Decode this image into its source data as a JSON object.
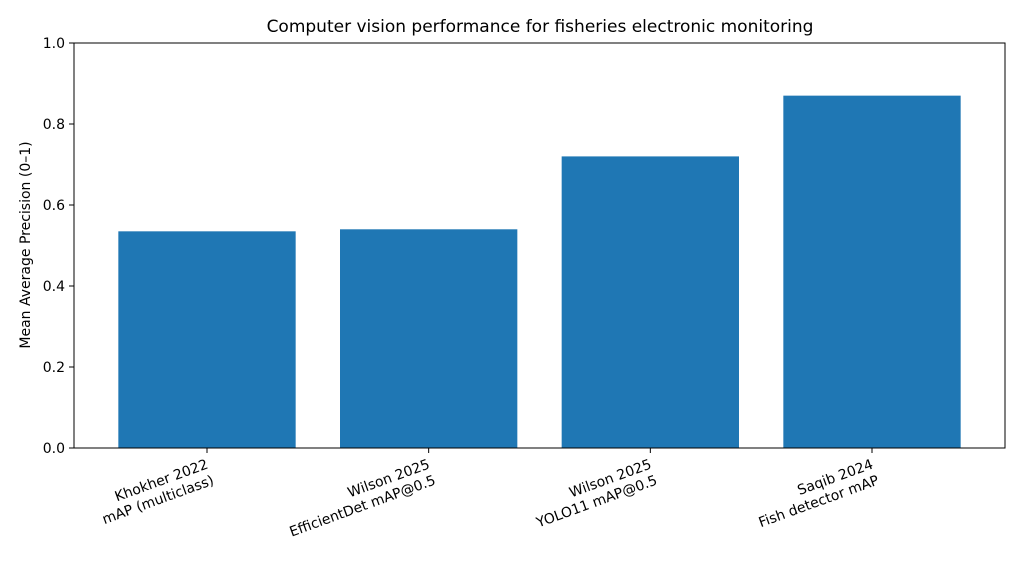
{
  "chart_data": {
    "type": "bar",
    "title": "Computer vision performance for fisheries electronic monitoring",
    "xlabel": "",
    "ylabel": "Mean Average Precision (0–1)",
    "ylim": [
      0,
      1.0
    ],
    "yticks": [
      "0.0",
      "0.2",
      "0.4",
      "0.6",
      "0.8",
      "1.0"
    ],
    "ytick_values": [
      0,
      0.2,
      0.4,
      0.6,
      0.8,
      1.0
    ],
    "grid": false,
    "categories": [
      [
        "Khokher 2022",
        "mAP (multiclass)"
      ],
      [
        "Wilson 2025",
        "EfficientDet mAP@0.5"
      ],
      [
        "Wilson 2025",
        "YOLO11 mAP@0.5"
      ],
      [
        "Saqib 2024",
        "Fish detector mAP"
      ]
    ],
    "values": [
      0.535,
      0.54,
      0.72,
      0.87
    ],
    "bar_color": "#1f77b4"
  }
}
